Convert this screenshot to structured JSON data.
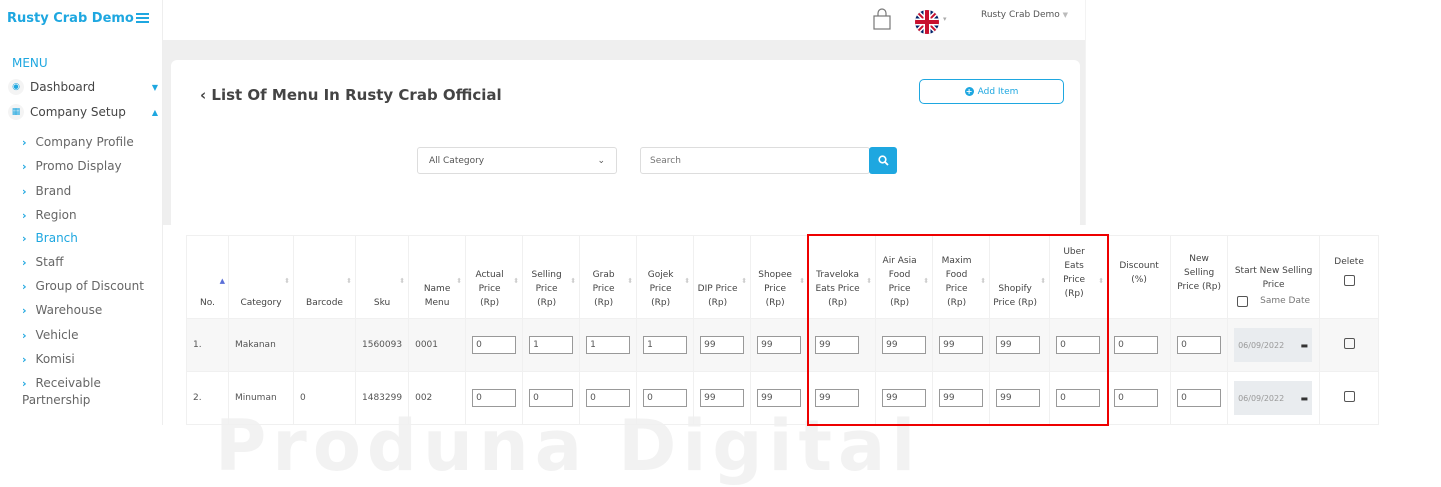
{
  "sidebar": {
    "brand": "Rusty Crab Demo",
    "menu_label": "MENU",
    "top_items": [
      {
        "label": "Dashboard",
        "icon": "dashboard-icon",
        "caret": "▼"
      },
      {
        "label": "Company Setup",
        "icon": "building-icon",
        "caret": "▲"
      }
    ],
    "sub_items": [
      "Company Profile",
      "Promo Display",
      "Brand",
      "Region",
      "Branch",
      "Staff",
      "Group of Discount",
      "Warehouse",
      "Vehicle",
      "Komisi",
      "Receivable Partnership"
    ],
    "active": "Branch"
  },
  "header": {
    "user": "Rusty Crab Demo",
    "cart_icon": "shopping-bag-icon",
    "language_icon": "uk-flag-icon"
  },
  "page": {
    "title": "List Of Menu In Rusty Crab Official",
    "add_item": "Add Item",
    "category_select": "All Category",
    "search_placeholder": "Search"
  },
  "table": {
    "headers": [
      "No.",
      "Category",
      "Barcode",
      "Sku",
      "Name Menu",
      "Actual Price (Rp)",
      "Selling Price (Rp)",
      "Grab Price (Rp)",
      "Gojek Price (Rp)",
      "DIP Price (Rp)",
      "Shopee Price (Rp)",
      "Traveloka Eats Price (Rp)",
      "Air Asia Food Price (Rp)",
      "Maxim Food Price (Rp)",
      "Shopify Price (Rp)",
      "Uber Eats Price (Rp)",
      "Discount (%)",
      "New Selling Price (Rp)",
      "Start New Selling Price",
      "Delete"
    ],
    "same_date_label": "Same Date",
    "rows": [
      {
        "no": "1.",
        "category": "Makanan",
        "barcode": "",
        "sku": "1560093",
        "name": "0001",
        "prices": [
          "0",
          "1",
          "1",
          "1",
          "99",
          "99",
          "99",
          "99",
          "99",
          "99",
          "0",
          "0",
          "0"
        ],
        "date": "06/09/2022"
      },
      {
        "no": "2.",
        "category": "Minuman",
        "barcode": "0",
        "sku": "1483299",
        "name": "002",
        "prices": [
          "0",
          "0",
          "0",
          "0",
          "99",
          "99",
          "99",
          "99",
          "99",
          "99",
          "0",
          "0",
          "0"
        ],
        "date": "06/09/2022"
      }
    ]
  },
  "colors": {
    "accent": "#1ea7e0",
    "highlight": "#e00000"
  }
}
